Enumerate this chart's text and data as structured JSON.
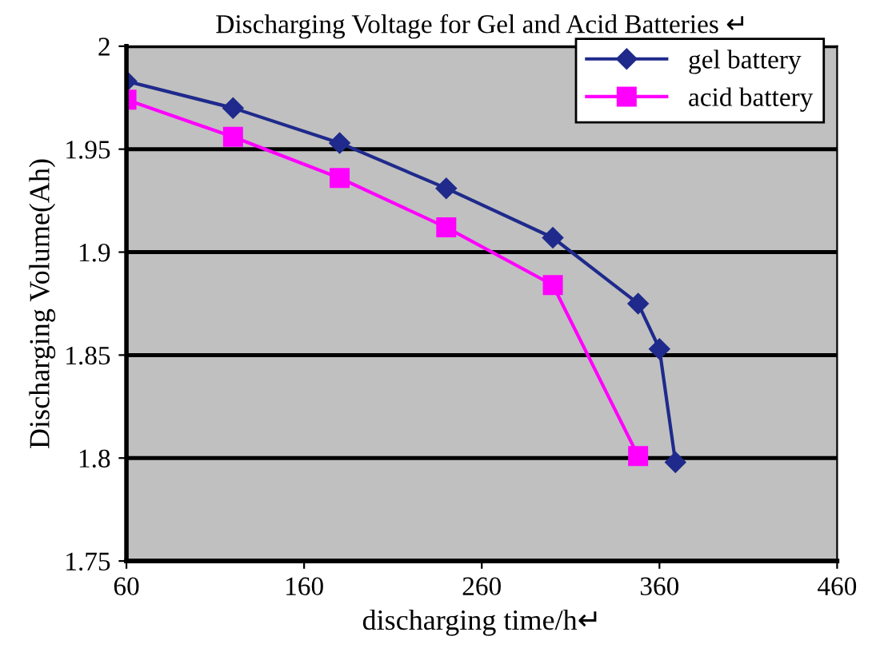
{
  "chart_data": {
    "type": "line",
    "title": "Discharging Voltage for Gel and Acid Batteries ↵",
    "xlabel": "discharging time/h↵",
    "ylabel": "Discharging Volume(Ah)",
    "xlim": [
      60,
      460
    ],
    "xticks": [
      60,
      160,
      260,
      360,
      460
    ],
    "ylim": [
      1.75,
      2.0
    ],
    "yticks": [
      1.75,
      1.8,
      1.85,
      1.9,
      1.95,
      2
    ],
    "grid": "y",
    "legend": "top right",
    "series": [
      {
        "name": "gel battery",
        "color": "#1f2a8c",
        "marker": "diamond",
        "x": [
          60,
          120,
          180,
          240,
          300,
          348,
          360,
          369
        ],
        "values": [
          1.983,
          1.97,
          1.953,
          1.931,
          1.907,
          1.875,
          1.853,
          1.798
        ]
      },
      {
        "name": "acid battery",
        "color": "#ff00ff",
        "marker": "square",
        "x": [
          60,
          120,
          180,
          240,
          300,
          348
        ],
        "values": [
          1.974,
          1.956,
          1.936,
          1.912,
          1.884,
          1.801
        ]
      }
    ]
  }
}
